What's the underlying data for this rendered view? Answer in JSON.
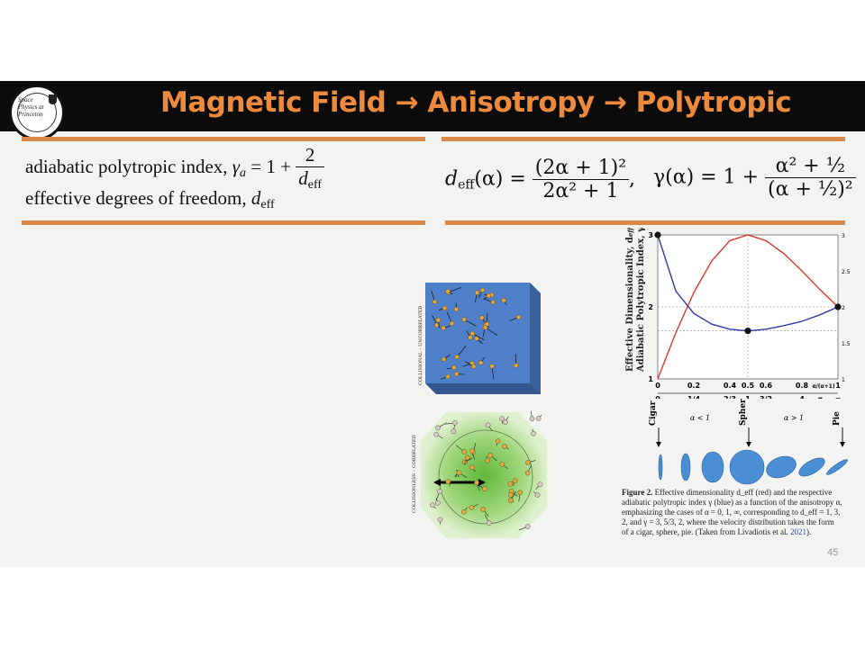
{
  "title": "Magnetic Field → Anisotropy → Polytropic",
  "logo": {
    "text": "Space Physics at Princeton"
  },
  "left_eq": {
    "line1_text": "adiabatic polytropic index,",
    "gamma_symbol": "γ",
    "gamma_sub": "a",
    "equals": "= 1 +",
    "numerator": "2",
    "denom_d": "d",
    "denom_sub": "eff",
    "line2_text": "effective degrees of freedom,",
    "line2_d": "d",
    "line2_sub": "eff"
  },
  "right_eq": {
    "d_lhs": "d",
    "d_lhs_sub": "eff",
    "d_arg": "(α) =",
    "d_num": "(2α + 1)²",
    "d_den": "2α² + 1",
    "comma": ",",
    "g_lhs": "γ(α) = 1 +",
    "g_num": "α² + ½",
    "g_den": "(α + ½)²"
  },
  "panel_labels": {
    "top_side": "COLLISIONAL – UNCORRELATED",
    "bottom_side": "COLLISIONLESS – CORRELATED",
    "lambda": "λ"
  },
  "chart_data": {
    "type": "line",
    "ylabel_red": "Effective Dimensionality, d",
    "ylabel_red_sub": "eff",
    "ylabel_blue": "Adiabatic Polytropic Index, γ",
    "x_top_ticks": [
      "0",
      "0.2",
      "0.4",
      "0.5",
      "0.6",
      "0.8",
      "α/(α+1)",
      "1"
    ],
    "x_bottom_ticks": [
      "0",
      "1/4",
      "2/3",
      "1",
      "3/2",
      "4",
      "α",
      "∞"
    ],
    "y_left_ticks": [
      "1",
      "2",
      "3"
    ],
    "y_right_ticks": [
      "1",
      "1.5",
      "2",
      "2.5",
      "3"
    ],
    "xlim": [
      0,
      1
    ],
    "ylim": [
      1,
      3
    ],
    "series": [
      {
        "color": "#d83a2e",
        "x": [
          0,
          0.1,
          0.2,
          0.3,
          0.4,
          0.5,
          0.6,
          0.7,
          0.8,
          0.9,
          1.0
        ],
        "y": [
          1.0,
          1.64,
          2.2,
          2.64,
          2.92,
          3.0,
          2.92,
          2.74,
          2.5,
          2.24,
          2.0
        ]
      },
      {
        "color": "#2f3aa8",
        "x": [
          0,
          0.1,
          0.2,
          0.3,
          0.4,
          0.5,
          0.6,
          0.7,
          0.8,
          0.9,
          1.0
        ],
        "y": [
          3.0,
          2.22,
          1.91,
          1.76,
          1.69,
          1.667,
          1.69,
          1.74,
          1.8,
          1.89,
          2.0
        ]
      }
    ],
    "markers": [
      {
        "x": 0,
        "y": 3
      },
      {
        "x": 0.5,
        "y": 1.667
      },
      {
        "x": 1,
        "y": 2
      }
    ],
    "shape_labels": [
      "Cigar",
      "Sphere",
      "Pie"
    ],
    "regime_labels": [
      "α < 1",
      "α > 1"
    ]
  },
  "caption": {
    "fig_label": "Figure 2.",
    "text": "Effective dimensionality d_eff (red) and the respective adiabatic polytropic index γ (blue) as a function of the anisotropy α, emphasizing the cases of α = 0, 1, ∞, corresponding to d_eff = 1, 3, 2, and γ = 3, 5/3, 2, where the velocity distribution takes the form of a cigar, sphere, pie. (Taken from Livadiotis et al.",
    "year": "2021",
    "end": ")."
  },
  "page_number": "45",
  "colors": {
    "accent": "#ee8a3c",
    "rule": "#d9884a",
    "red": "#d83a2e",
    "blue": "#2f3aa8"
  }
}
